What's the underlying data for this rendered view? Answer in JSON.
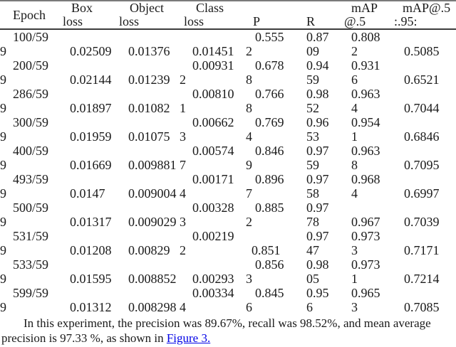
{
  "page": {
    "background_color": "#ffffff",
    "text_color": "#1a1a1a",
    "link_color": "#0000e6"
  },
  "table": {
    "header": {
      "epoch": "Epoch",
      "box_l1": "Box",
      "box_l2": "loss",
      "object_l1": "Object",
      "object_l2": "loss",
      "class_l1": "Class",
      "class_l2": "loss",
      "p_l2": "P",
      "r_l2": "R",
      "map5_l1": "mAP",
      "map5_l2": "@.5",
      "map595_l1": "mAP@.5",
      "map595_l2": ":.95:"
    },
    "rows": [
      {
        "epoch_l1": "100/59",
        "epoch_l2": "9",
        "box_l2": "0.02509",
        "object_l2": "0.01376",
        "class_l1": "",
        "class_l2": "0.01451",
        "p_l1": "0.555",
        "p_l2": "2",
        "r_l1": "0.87",
        "r_l2": "09",
        "map5_l1": "0.808",
        "map5_l2": "2",
        "map595_l2": "0.5085"
      },
      {
        "epoch_l1": "200/59",
        "epoch_l2": "9",
        "box_l2": "0.02144",
        "object_l2": "0.01239",
        "class_l1": "0.00931",
        "class_l2": "2",
        "p_l1": "0.678",
        "p_l2": "8",
        "r_l1": "0.94",
        "r_l2": "59",
        "map5_l1": "0.931",
        "map5_l2": "6",
        "map595_l2": "0.6521"
      },
      {
        "epoch_l1": "286/59",
        "epoch_l2": "9",
        "box_l2": "0.01897",
        "object_l2": "0.01082",
        "class_l1": "0.00810",
        "class_l2": "1",
        "p_l1": "0.766",
        "p_l2": "8",
        "r_l1": "0.98",
        "r_l2": "52",
        "map5_l1": "0.963",
        "map5_l2": "4",
        "map595_l2": "0.7044"
      },
      {
        "epoch_l1": "300/59",
        "epoch_l2": "9",
        "box_l2": "0.01959",
        "object_l2": "0.01075",
        "class_l1": "0.00662",
        "class_l2": "3",
        "p_l1": "0.769",
        "p_l2": "4",
        "r_l1": "0.96",
        "r_l2": "53",
        "map5_l1": "0.954",
        "map5_l2": "1",
        "map595_l2": "0.6846"
      },
      {
        "epoch_l1": "400/59",
        "epoch_l2": "9",
        "box_l2": "0.01669",
        "object_l2": "0.009881",
        "class_l1": "0.00574",
        "class_l2": "7",
        "p_l1": "0.846",
        "p_l2": "9",
        "r_l1": "0.97",
        "r_l2": "59",
        "map5_l1": "0.963",
        "map5_l2": "8",
        "map595_l2": "0.7095"
      },
      {
        "epoch_l1": "493/59",
        "epoch_l2": "9",
        "box_l2": "0.0147",
        "object_l2": "0.009004",
        "class_l1": "0.00171",
        "class_l2": "4",
        "p_l1": "0.896",
        "p_l2": "7",
        "r_l1": "0.97",
        "r_l2": "58",
        "map5_l1": "0.968",
        "map5_l2": "4",
        "map595_l2": "0.6997"
      },
      {
        "epoch_l1": "500/59",
        "epoch_l2": "9",
        "box_l2": "0.01317",
        "object_l2": "0.009029",
        "class_l1": "0.00328",
        "class_l2": "3",
        "p_l1": "0.885",
        "p_l2": "2",
        "r_l1": "0.97",
        "r_l2": "78",
        "map5_l1": "",
        "map5_l2": "0.967",
        "map595_l2": "0.7039"
      },
      {
        "epoch_l1": "531/59",
        "epoch_l2": "9",
        "box_l2": "0.01208",
        "object_l2": "0.00829",
        "class_l1": "0.00219",
        "class_l2": "2",
        "p_l1": "",
        "p_l2": "0.851",
        "r_l1": "0.97",
        "r_l2": "47",
        "map5_l1": "0.973",
        "map5_l2": "3",
        "map595_l2": "0.7171"
      },
      {
        "epoch_l1": "533/59",
        "epoch_l2": "9",
        "box_l2": "0.01595",
        "object_l2": "0.008852",
        "class_l1": "",
        "class_l2": "0.00293",
        "p_l1": "0.856",
        "p_l2": "3",
        "r_l1": "0.98",
        "r_l2": "05",
        "map5_l1": "0.973",
        "map5_l2": "1",
        "map595_l2": "0.7214"
      },
      {
        "epoch_l1": "599/59",
        "epoch_l2": "9",
        "box_l2": "0.01312",
        "object_l2": "0.008298",
        "class_l1": "0.00334",
        "class_l2": "4",
        "p_l1": "0.845",
        "p_l2": "6",
        "r_l1": "0.95",
        "r_l2": "6",
        "map5_l1": "0.965",
        "map5_l2": "3",
        "map595_l2": "0.7085"
      }
    ]
  },
  "footer": {
    "line1": "In this experiment, the precision was 89.67%, recall was 98.52%, and mean average",
    "line2_prefix": "precision is 97.33 %, as shown in ",
    "link_text": "Figure 3."
  }
}
